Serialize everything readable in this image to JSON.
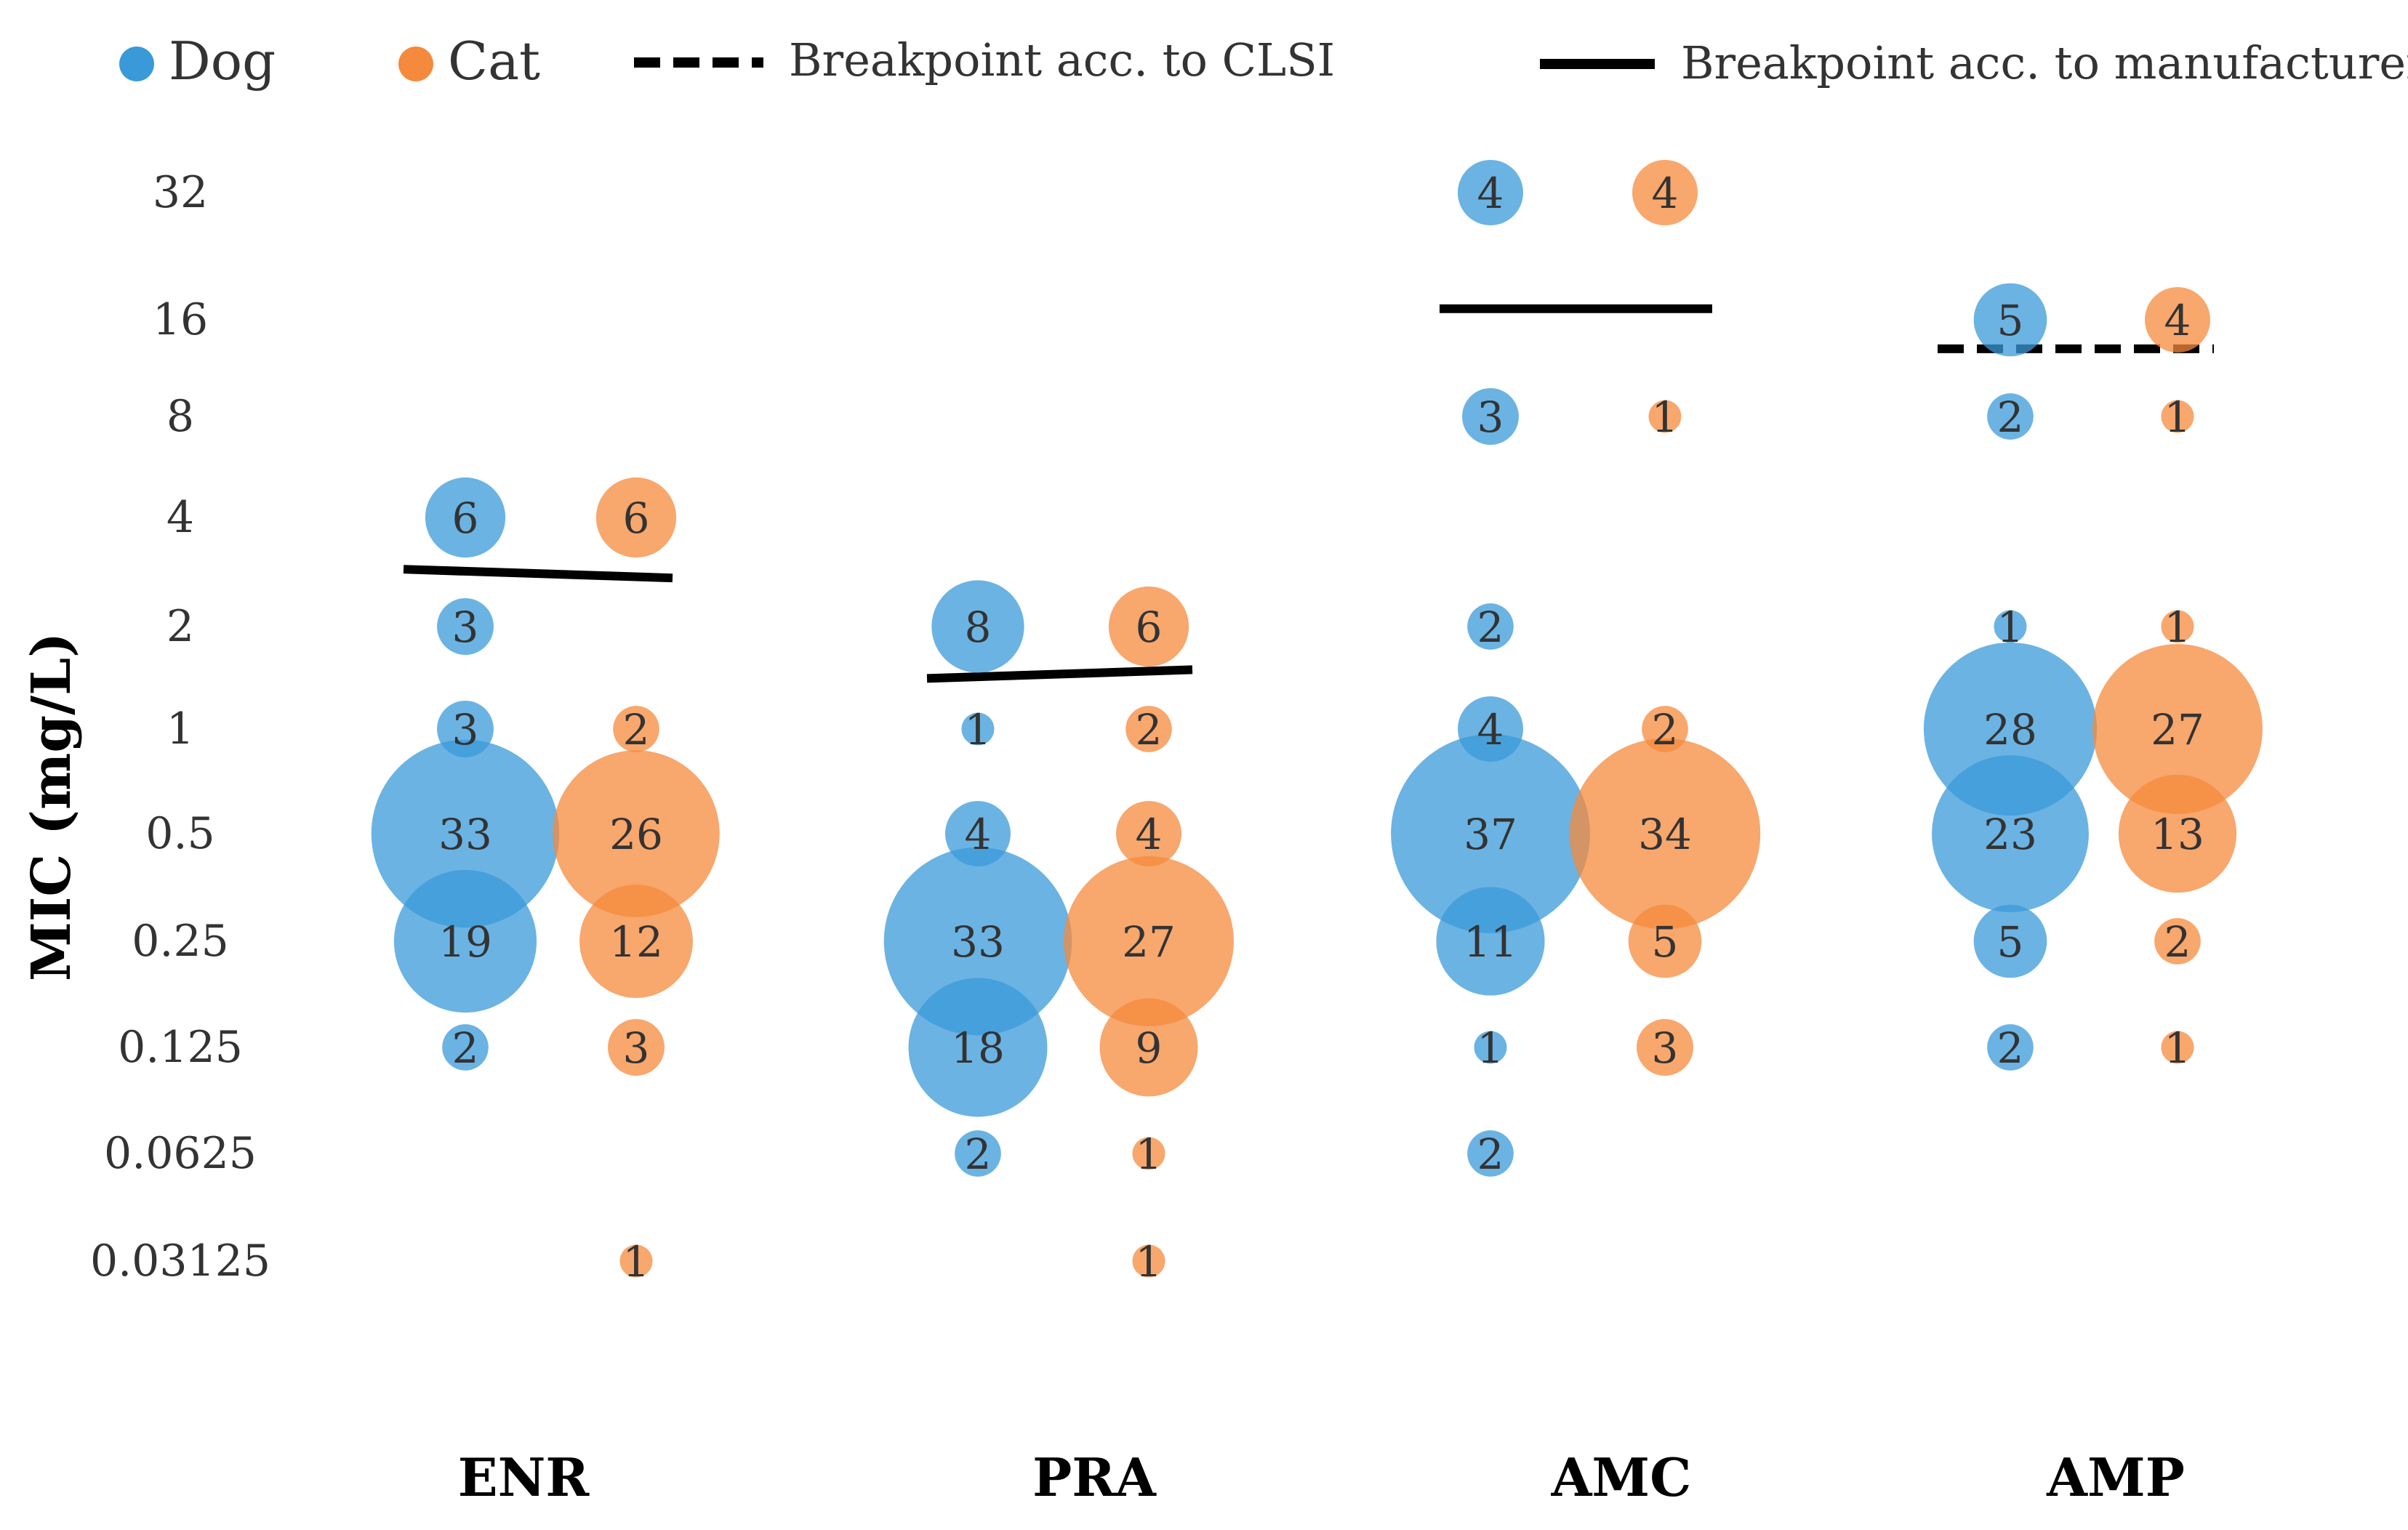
{
  "chart_data": {
    "type": "scatter",
    "subtype": "bubble",
    "ylabel": "MIC (mg/L)",
    "xlabel": "",
    "categories": [
      "ENR",
      "PRA",
      "AMC",
      "AMP"
    ],
    "y_ticks": [
      {
        "value": 32,
        "label": "32"
      },
      {
        "value": 16,
        "label": "16"
      },
      {
        "value": 8,
        "label": "8"
      },
      {
        "value": 4,
        "label": "4"
      },
      {
        "value": 2,
        "label": "2"
      },
      {
        "value": 1,
        "label": "1"
      },
      {
        "value": 0.5,
        "label": "0.5"
      },
      {
        "value": 0.25,
        "label": "0.25"
      },
      {
        "value": 0.125,
        "label": "0.125"
      },
      {
        "value": 0.0625,
        "label": "0.0625"
      },
      {
        "value": 0.03125,
        "label": "0.03125"
      }
    ],
    "legend": {
      "placement": "top",
      "items": [
        {
          "key": "dog",
          "label": "Dog",
          "kind": "dot"
        },
        {
          "key": "cat",
          "label": "Cat",
          "kind": "dot"
        },
        {
          "key": "clsi",
          "label": "Breakpoint acc. to CLSI",
          "kind": "dashed"
        },
        {
          "key": "manufacturer",
          "label": "Breakpoint acc. to manufacturer",
          "kind": "solid"
        }
      ]
    },
    "colors": {
      "dog": "#3a9ad9",
      "cat": "#f5893c",
      "line": "#000000",
      "text": "#333333"
    },
    "series": [
      {
        "name": "Dog",
        "key": "dog",
        "points": [
          {
            "category": "ENR",
            "mic": 4,
            "count": 6
          },
          {
            "category": "ENR",
            "mic": 2,
            "count": 3
          },
          {
            "category": "ENR",
            "mic": 1,
            "count": 3
          },
          {
            "category": "ENR",
            "mic": 0.5,
            "count": 33
          },
          {
            "category": "ENR",
            "mic": 0.25,
            "count": 19
          },
          {
            "category": "ENR",
            "mic": 0.125,
            "count": 2
          },
          {
            "category": "PRA",
            "mic": 2,
            "count": 8
          },
          {
            "category": "PRA",
            "mic": 1,
            "count": 1
          },
          {
            "category": "PRA",
            "mic": 0.5,
            "count": 4
          },
          {
            "category": "PRA",
            "mic": 0.25,
            "count": 33
          },
          {
            "category": "PRA",
            "mic": 0.125,
            "count": 18
          },
          {
            "category": "PRA",
            "mic": 0.0625,
            "count": 2
          },
          {
            "category": "AMC",
            "mic": 32,
            "count": 4
          },
          {
            "category": "AMC",
            "mic": 8,
            "count": 3
          },
          {
            "category": "AMC",
            "mic": 2,
            "count": 2
          },
          {
            "category": "AMC",
            "mic": 1,
            "count": 4
          },
          {
            "category": "AMC",
            "mic": 0.5,
            "count": 37
          },
          {
            "category": "AMC",
            "mic": 0.25,
            "count": 11
          },
          {
            "category": "AMC",
            "mic": 0.125,
            "count": 1
          },
          {
            "category": "AMC",
            "mic": 0.0625,
            "count": 2
          },
          {
            "category": "AMP",
            "mic": 16,
            "count": 5
          },
          {
            "category": "AMP",
            "mic": 8,
            "count": 2
          },
          {
            "category": "AMP",
            "mic": 2,
            "count": 1
          },
          {
            "category": "AMP",
            "mic": 1,
            "count": 28
          },
          {
            "category": "AMP",
            "mic": 0.5,
            "count": 23
          },
          {
            "category": "AMP",
            "mic": 0.25,
            "count": 5
          },
          {
            "category": "AMP",
            "mic": 0.125,
            "count": 2
          }
        ]
      },
      {
        "name": "Cat",
        "key": "cat",
        "points": [
          {
            "category": "ENR",
            "mic": 4,
            "count": 6
          },
          {
            "category": "ENR",
            "mic": 1,
            "count": 2
          },
          {
            "category": "ENR",
            "mic": 0.5,
            "count": 26
          },
          {
            "category": "ENR",
            "mic": 0.25,
            "count": 12
          },
          {
            "category": "ENR",
            "mic": 0.125,
            "count": 3
          },
          {
            "category": "ENR",
            "mic": 0.03125,
            "count": 1
          },
          {
            "category": "PRA",
            "mic": 2,
            "count": 6
          },
          {
            "category": "PRA",
            "mic": 1,
            "count": 2
          },
          {
            "category": "PRA",
            "mic": 0.5,
            "count": 4
          },
          {
            "category": "PRA",
            "mic": 0.25,
            "count": 27
          },
          {
            "category": "PRA",
            "mic": 0.125,
            "count": 9
          },
          {
            "category": "PRA",
            "mic": 0.0625,
            "count": 1
          },
          {
            "category": "PRA",
            "mic": 0.03125,
            "count": 1
          },
          {
            "category": "AMC",
            "mic": 32,
            "count": 4
          },
          {
            "category": "AMC",
            "mic": 8,
            "count": 1
          },
          {
            "category": "AMC",
            "mic": 1,
            "count": 2
          },
          {
            "category": "AMC",
            "mic": 0.5,
            "count": 34
          },
          {
            "category": "AMC",
            "mic": 0.25,
            "count": 5
          },
          {
            "category": "AMC",
            "mic": 0.125,
            "count": 3
          },
          {
            "category": "AMP",
            "mic": 16,
            "count": 4
          },
          {
            "category": "AMP",
            "mic": 8,
            "count": 1
          },
          {
            "category": "AMP",
            "mic": 2,
            "count": 1
          },
          {
            "category": "AMP",
            "mic": 1,
            "count": 27
          },
          {
            "category": "AMP",
            "mic": 0.5,
            "count": 13
          },
          {
            "category": "AMP",
            "mic": 0.25,
            "count": 2
          },
          {
            "category": "AMP",
            "mic": 0.125,
            "count": 1
          }
        ]
      }
    ],
    "breakpoints": [
      {
        "category": "ENR",
        "type": "manufacturer",
        "style": "solid",
        "mic": 2.8
      },
      {
        "category": "PRA",
        "type": "manufacturer",
        "style": "solid",
        "mic": 1.45
      },
      {
        "category": "AMC",
        "type": "manufacturer",
        "style": "solid",
        "mic": 17
      },
      {
        "category": "AMP",
        "type": "clsi",
        "style": "dashed",
        "mic": 13
      }
    ]
  }
}
